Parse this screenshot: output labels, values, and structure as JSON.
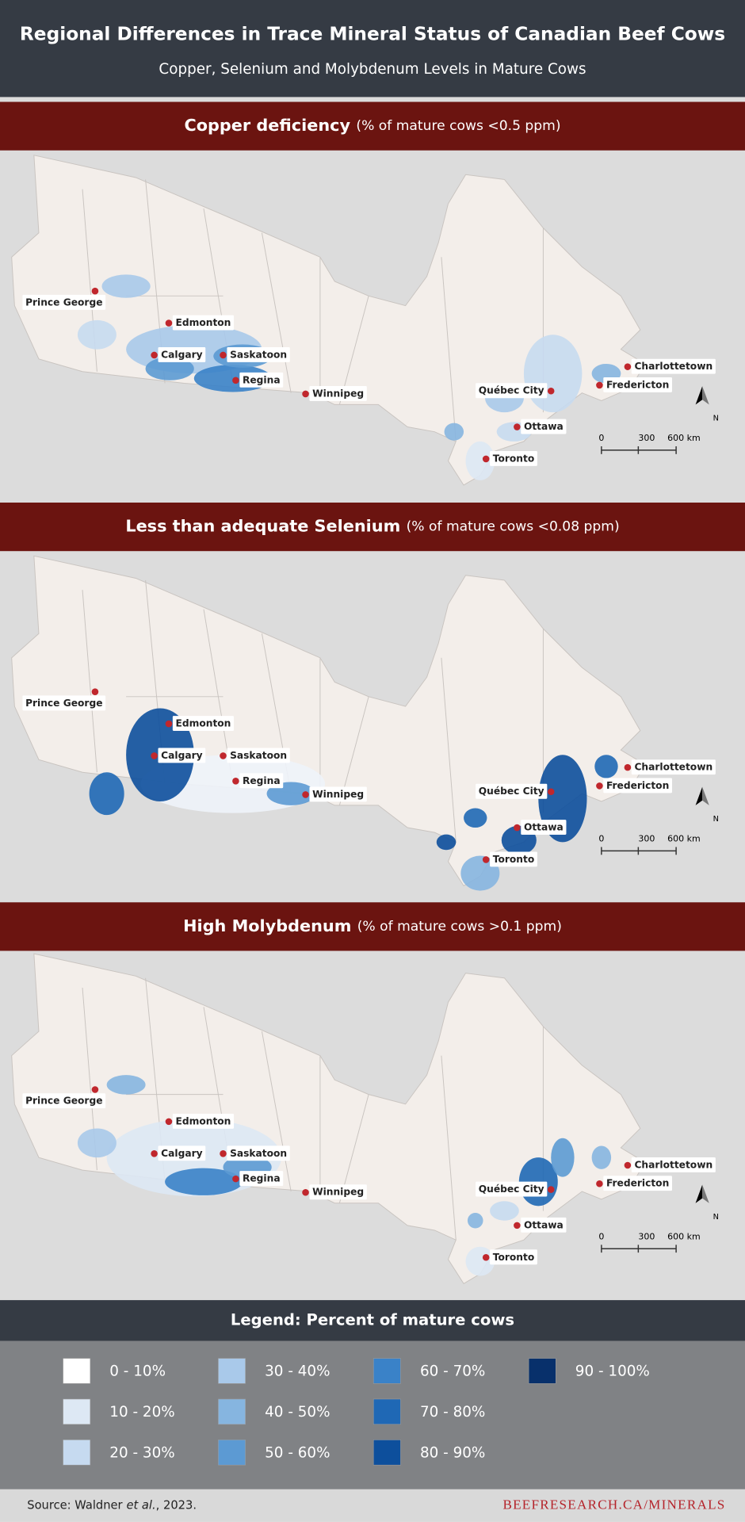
{
  "header": {
    "title": "Regional Differences in Trace Mineral Status of Canadian Beef Cows",
    "subtitle": "Copper, Selenium and Molybdenum Levels in Mature Cows"
  },
  "panels": [
    {
      "title": "Copper deficiency",
      "note": "(% of mature cows <0.5 ppm)",
      "cities": [
        "Prince George",
        "Edmonton",
        "Calgary",
        "Saskatoon",
        "Regina",
        "Winnipeg",
        "Québec City",
        "Ottawa",
        "Toronto",
        "Charlottetown",
        "Fredericton"
      ],
      "scale": [
        "0",
        "300",
        "600 km"
      ],
      "north": "N"
    },
    {
      "title": "Less than adequate Selenium",
      "note": "(% of mature cows <0.08 ppm)",
      "cities": [
        "Prince George",
        "Edmonton",
        "Calgary",
        "Saskatoon",
        "Regina",
        "Winnipeg",
        "Québec City",
        "Ottawa",
        "Toronto",
        "Charlottetown",
        "Fredericton"
      ],
      "scale": [
        "0",
        "300",
        "600 km"
      ],
      "north": "N"
    },
    {
      "title": "High Molybdenum",
      "note": "(% of mature cows >0.1 ppm)",
      "cities": [
        "Prince George",
        "Edmonton",
        "Calgary",
        "Saskatoon",
        "Regina",
        "Winnipeg",
        "Québec City",
        "Ottawa",
        "Toronto",
        "Charlottetown",
        "Fredericton"
      ],
      "scale": [
        "0",
        "300",
        "600 km"
      ],
      "north": "N"
    }
  ],
  "legend": {
    "title": "Legend: Percent of mature cows",
    "items": [
      {
        "label": "0 - 10%",
        "color": "#ffffff"
      },
      {
        "label": "10 - 20%",
        "color": "#dde8f4"
      },
      {
        "label": "20 - 30%",
        "color": "#c6daf0"
      },
      {
        "label": "30 - 40%",
        "color": "#a9c9ea"
      },
      {
        "label": "40 - 50%",
        "color": "#86b5e0"
      },
      {
        "label": "50 - 60%",
        "color": "#5c9ad3"
      },
      {
        "label": "60 - 70%",
        "color": "#3a82c8"
      },
      {
        "label": "70 - 80%",
        "color": "#1f68b5"
      },
      {
        "label": "80 - 90%",
        "color": "#0d4f9c"
      },
      {
        "label": "90 - 100%",
        "color": "#08306b"
      }
    ]
  },
  "footer": {
    "source_prefix": "Source: Waldner",
    "source_italic": "et al.",
    "source_suffix": ", 2023.",
    "url": "BEEFRESEARCH.CA/MINERALS"
  }
}
